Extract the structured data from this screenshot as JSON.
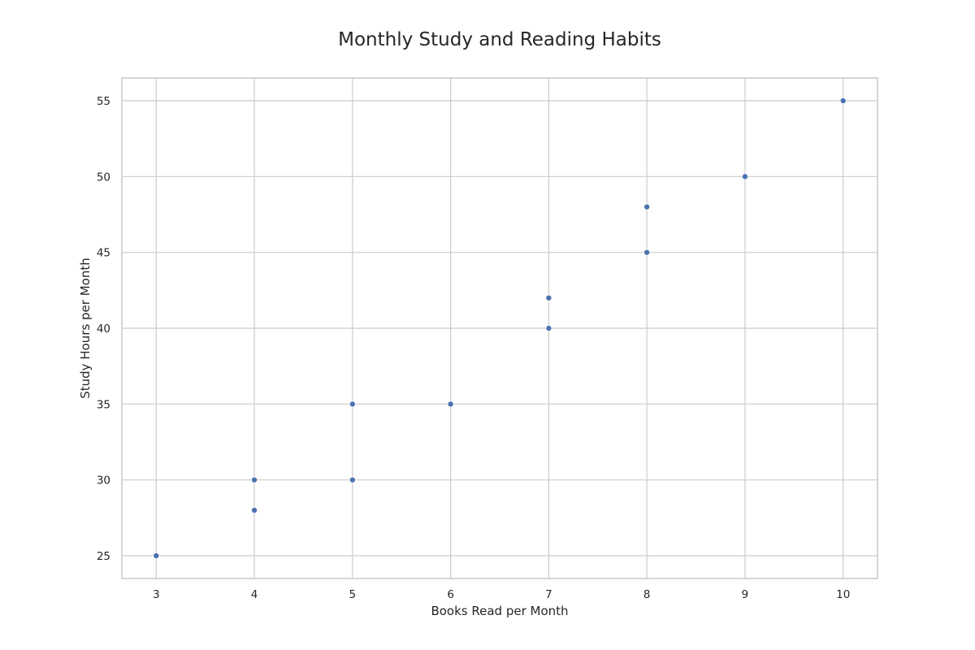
{
  "chart_data": {
    "type": "scatter",
    "title": "Monthly Study and Reading Habits",
    "xlabel": "Books Read per Month",
    "ylabel": "Study Hours per Month",
    "xlim": [
      2.65,
      10.35
    ],
    "ylim": [
      23.5,
      56.5
    ],
    "xticks": [
      3,
      4,
      5,
      6,
      7,
      8,
      9,
      10
    ],
    "yticks": [
      25,
      30,
      35,
      40,
      45,
      50,
      55
    ],
    "grid": true,
    "legend": null,
    "marker_color": "#4c72b0",
    "grid_color": "#cccccc",
    "points": [
      {
        "x": 3,
        "y": 25
      },
      {
        "x": 4,
        "y": 28
      },
      {
        "x": 4,
        "y": 30
      },
      {
        "x": 5,
        "y": 30
      },
      {
        "x": 5,
        "y": 35
      },
      {
        "x": 6,
        "y": 35
      },
      {
        "x": 7,
        "y": 40
      },
      {
        "x": 7,
        "y": 42
      },
      {
        "x": 8,
        "y": 45
      },
      {
        "x": 8,
        "y": 48
      },
      {
        "x": 9,
        "y": 50
      },
      {
        "x": 10,
        "y": 55
      }
    ]
  }
}
